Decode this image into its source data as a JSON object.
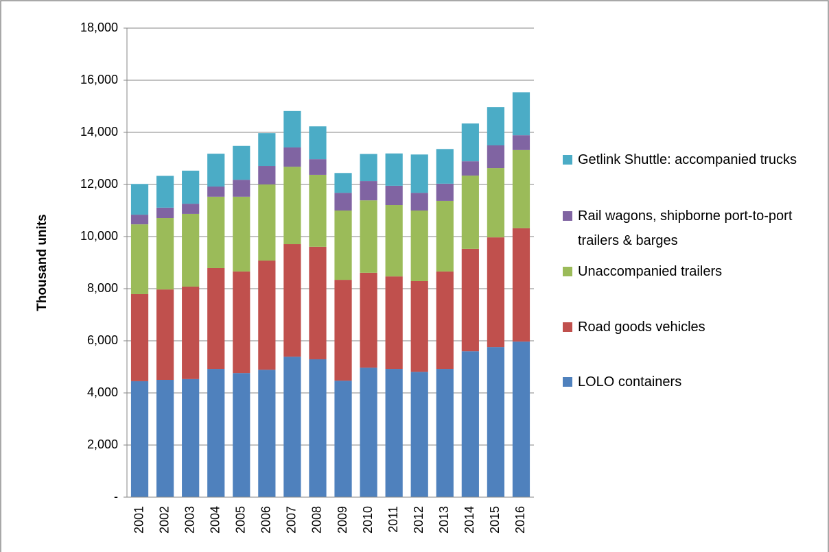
{
  "chart_data": {
    "type": "stacked_bar",
    "y_axis_label": "Thousand units",
    "categories": [
      "2001",
      "2002",
      "2003",
      "2004",
      "2005",
      "2006",
      "2007",
      "2008",
      "2009",
      "2010",
      "2011",
      "2012",
      "2013",
      "2014",
      "2015",
      "2016"
    ],
    "series": [
      {
        "name": "LOLO containers",
        "color": "#4f81bd",
        "values": [
          4450,
          4500,
          4530,
          4920,
          4760,
          4890,
          5390,
          5290,
          4470,
          4970,
          4920,
          4810,
          4920,
          5600,
          5760,
          5970
        ]
      },
      {
        "name": "Road goods vehicles",
        "color": "#c0504d",
        "values": [
          3340,
          3470,
          3550,
          3870,
          3900,
          4190,
          4320,
          4320,
          3870,
          3640,
          3550,
          3480,
          3740,
          3930,
          4210,
          4350
        ]
      },
      {
        "name": "Unaccompanied trailers",
        "color": "#9bbb59",
        "values": [
          2680,
          2740,
          2790,
          2740,
          2870,
          2920,
          2970,
          2760,
          2660,
          2780,
          2740,
          2710,
          2710,
          2810,
          2660,
          3000
        ]
      },
      {
        "name": "Rail wagons, shipborne port-to-port trailers & barges",
        "color": "#8064a2",
        "values": [
          370,
          400,
          390,
          390,
          650,
          710,
          740,
          600,
          680,
          740,
          740,
          680,
          660,
          550,
          870,
          570
        ]
      },
      {
        "name": "Getlink Shuttle:  accompanied trucks",
        "color": "#4bacc6",
        "values": [
          1180,
          1220,
          1270,
          1260,
          1300,
          1260,
          1400,
          1260,
          760,
          1040,
          1240,
          1470,
          1330,
          1450,
          1470,
          1650
        ]
      }
    ],
    "ylim": [
      0,
      18000
    ],
    "yticks": [
      {
        "value": 0,
        "label": "-"
      },
      {
        "value": 2000,
        "label": "2,000"
      },
      {
        "value": 4000,
        "label": "4,000"
      },
      {
        "value": 6000,
        "label": "6,000"
      },
      {
        "value": 8000,
        "label": "8,000"
      },
      {
        "value": 10000,
        "label": "10,000"
      },
      {
        "value": 12000,
        "label": "12,000"
      },
      {
        "value": 14000,
        "label": "14,000"
      },
      {
        "value": 16000,
        "label": "16,000"
      },
      {
        "value": 18000,
        "label": "18,000"
      }
    ],
    "grid": true,
    "legend": "right"
  }
}
